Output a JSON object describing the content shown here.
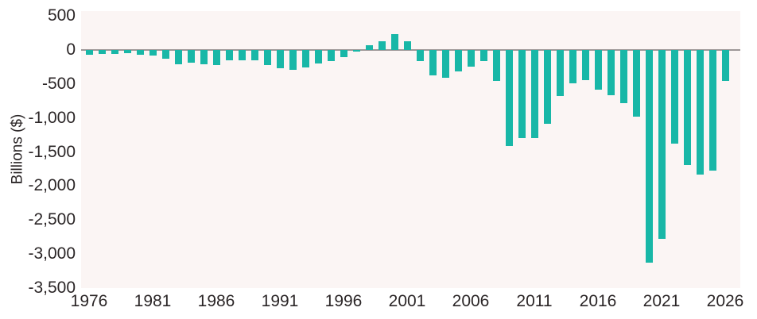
{
  "chart_data": {
    "type": "bar",
    "title": "",
    "xlabel": "",
    "ylabel": "Billions ($)",
    "categories": [
      1976,
      1977,
      1978,
      1979,
      1980,
      1981,
      1982,
      1983,
      1984,
      1985,
      1986,
      1987,
      1988,
      1989,
      1990,
      1991,
      1992,
      1993,
      1994,
      1995,
      1996,
      1997,
      1998,
      1999,
      2000,
      2001,
      2002,
      2003,
      2004,
      2005,
      2006,
      2007,
      2008,
      2009,
      2010,
      2011,
      2012,
      2013,
      2014,
      2015,
      2016,
      2017,
      2018,
      2019,
      2020,
      2021,
      2022,
      2023,
      2024,
      2025,
      2026
    ],
    "values": [
      -74,
      -54,
      -59,
      -41,
      -74,
      -79,
      -128,
      -208,
      -185,
      -212,
      -221,
      -150,
      -155,
      -153,
      -221,
      -269,
      -290,
      -255,
      -203,
      -164,
      -107,
      -22,
      69,
      126,
      236,
      128,
      -158,
      -378,
      -413,
      -318,
      -248,
      -161,
      -459,
      -1413,
      -1294,
      -1300,
      -1087,
      -679,
      -485,
      -442,
      -585,
      -665,
      -779,
      -984,
      -3132,
      -2772,
      -1375,
      -1695,
      -1833,
      -1775,
      -450
    ],
    "ylim": [
      -3500,
      500
    ],
    "ytick_values": [
      500,
      0,
      -500,
      -1000,
      -1500,
      -2000,
      -2500,
      -3000,
      -3500
    ],
    "ytick_labels": [
      "500",
      "0",
      "-500",
      "-1,000",
      "-1,500",
      "-2,000",
      "-2,500",
      "-3,000",
      "-3,500"
    ],
    "xtick_labels": [
      "1976",
      "1981",
      "1986",
      "1991",
      "1996",
      "2001",
      "2006",
      "2011",
      "2016",
      "2021",
      "2026"
    ],
    "grid": false,
    "legend": false,
    "colors": {
      "bar": "#18b7a7",
      "plot_background": "#fbf5f4",
      "zero_line": "#9d9797",
      "text": "#2b2627",
      "page_background": "#ffffff"
    }
  }
}
